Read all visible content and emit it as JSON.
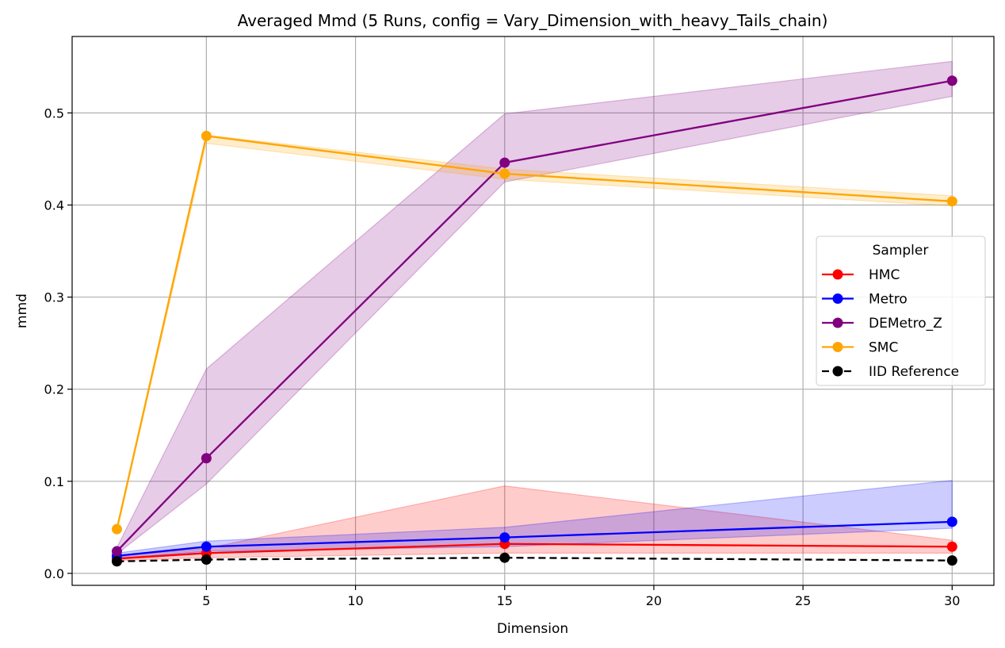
{
  "chart_data": {
    "type": "line",
    "title": "Averaged Mmd (5 Runs, config = Vary_Dimension_with_heavy_Tails_chain)",
    "xlabel": "Dimension",
    "ylabel": "mmd",
    "xlim": [
      0.5,
      31.4
    ],
    "ylim": [
      -0.013,
      0.583
    ],
    "xticks": [
      5,
      10,
      15,
      20,
      25,
      30
    ],
    "yticks": [
      0.0,
      0.1,
      0.2,
      0.3,
      0.4,
      0.5
    ],
    "grid": true,
    "legend": {
      "title": "Sampler",
      "placement": "center-right"
    },
    "x": [
      2,
      5,
      15,
      30
    ],
    "series": [
      {
        "name": "HMC",
        "color": "#ff0000",
        "dashed": false,
        "values": [
          0.016,
          0.022,
          0.032,
          0.029
        ],
        "lower": [
          0.014,
          0.017,
          0.022,
          0.022
        ],
        "upper": [
          0.019,
          0.027,
          0.095,
          0.036
        ]
      },
      {
        "name": "Metro",
        "color": "#0000ff",
        "dashed": false,
        "values": [
          0.019,
          0.029,
          0.039,
          0.056
        ],
        "lower": [
          0.016,
          0.024,
          0.029,
          0.049
        ],
        "upper": [
          0.022,
          0.035,
          0.05,
          0.101
        ]
      },
      {
        "name": "DEMetro_Z",
        "color": "#800080",
        "dashed": false,
        "values": [
          0.024,
          0.125,
          0.446,
          0.535
        ],
        "lower": [
          0.021,
          0.097,
          0.425,
          0.518
        ],
        "upper": [
          0.028,
          0.222,
          0.499,
          0.556
        ]
      },
      {
        "name": "SMC",
        "color": "#ffa500",
        "dashed": false,
        "values": [
          0.048,
          0.475,
          0.434,
          0.404
        ],
        "lower": [
          0.046,
          0.467,
          0.428,
          0.399
        ],
        "upper": [
          0.05,
          0.476,
          0.439,
          0.41
        ]
      },
      {
        "name": "IID Reference",
        "color": "#000000",
        "dashed": true,
        "values": [
          0.013,
          0.015,
          0.017,
          0.014
        ]
      }
    ]
  }
}
